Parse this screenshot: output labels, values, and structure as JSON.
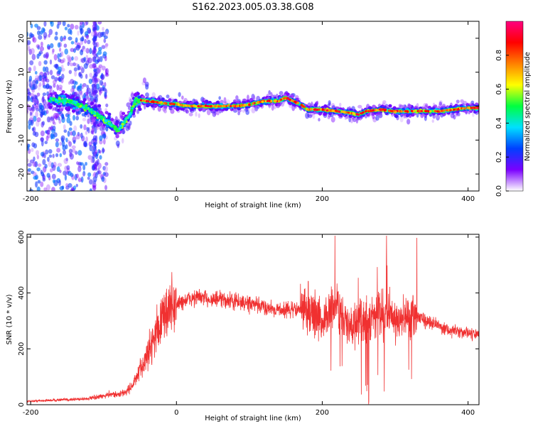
{
  "title": "S162.2023.005.03.38.G08",
  "chart_data": [
    {
      "type": "heatmap",
      "xlabel": "Height of straight line (km)",
      "ylabel": "Frequency (Hz)",
      "xlim": [
        -205,
        415
      ],
      "ylim": [
        -25,
        25
      ],
      "x_ticks": [
        -200,
        0,
        200,
        400
      ],
      "y_ticks": [
        20,
        10,
        0,
        -10,
        -20
      ],
      "colorbar": {
        "label": "Normalized spectral amplitude",
        "range": [
          0,
          1
        ],
        "ticks": [
          "0.0",
          "0.2",
          "0.4",
          "0.6",
          "0.8"
        ],
        "colors": [
          "#ffffff",
          "#7b00ff",
          "#0040ff",
          "#00e0ff",
          "#00ff40",
          "#ffff00",
          "#ff8000",
          "#ff0000",
          "#ff0080"
        ]
      },
      "ridge": {
        "description": "dominant frequency track",
        "x": [
          -200,
          -170,
          -140,
          -120,
          -100,
          -80,
          -65,
          -55,
          -40,
          -20,
          0,
          20,
          50,
          80,
          100,
          120,
          140,
          150,
          160,
          170,
          180,
          190,
          200,
          220,
          240,
          250,
          260,
          280,
          300,
          320,
          340,
          360,
          380,
          400,
          415
        ],
        "y": [
          2,
          2,
          1,
          -1,
          -4,
          -7,
          -3,
          2,
          1.5,
          1,
          0.5,
          0,
          0,
          0,
          0.5,
          1.5,
          1.5,
          2.5,
          1.5,
          0.5,
          -1,
          -1,
          -1,
          -1.5,
          -2,
          -2.5,
          -1.5,
          -1,
          -1.5,
          -1.5,
          -1.5,
          -1.5,
          -1,
          -0.5,
          -0.5
        ]
      }
    },
    {
      "type": "line",
      "xlabel": "Height of straight line (km)",
      "ylabel": "SNR (10 * v/v)",
      "xlim": [
        -205,
        415
      ],
      "ylim": [
        0,
        610
      ],
      "x_ticks": [
        -200,
        0,
        200,
        400
      ],
      "y_ticks": [
        0,
        200,
        400,
        600
      ],
      "series": [
        {
          "color": "#f03030",
          "x": [
            -205,
            -180,
            -150,
            -120,
            -100,
            -90,
            -80,
            -70,
            -60,
            -50,
            -40,
            -30,
            -20,
            -15,
            -10,
            0,
            10,
            20,
            30,
            40,
            60,
            80,
            100,
            120,
            140,
            160,
            180,
            190,
            200,
            210,
            220,
            230,
            240,
            250,
            260,
            270,
            280,
            290,
            300,
            310,
            320,
            330,
            340,
            350,
            360,
            370,
            380,
            390,
            400,
            415
          ],
          "y": [
            12,
            15,
            18,
            22,
            30,
            40,
            35,
            45,
            70,
            120,
            180,
            250,
            300,
            330,
            350,
            360,
            370,
            380,
            385,
            380,
            375,
            370,
            360,
            350,
            340,
            340,
            345,
            320,
            300,
            330,
            360,
            300,
            280,
            290,
            300,
            320,
            330,
            320,
            310,
            300,
            310,
            320,
            300,
            300,
            280,
            270,
            265,
            260,
            255,
            250
          ]
        }
      ]
    }
  ]
}
